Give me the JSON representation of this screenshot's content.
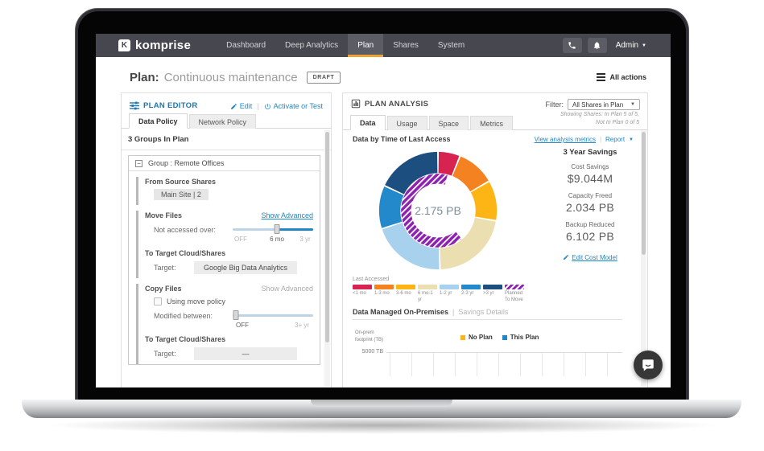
{
  "navbar": {
    "brand": "komprise",
    "items": [
      {
        "label": "Dashboard",
        "active": false
      },
      {
        "label": "Deep Analytics",
        "active": false
      },
      {
        "label": "Plan",
        "active": true
      },
      {
        "label": "Shares",
        "active": false
      },
      {
        "label": "System",
        "active": false
      }
    ],
    "admin_label": "Admin",
    "active_underline_color": "#f0a330"
  },
  "header": {
    "title_prefix": "Plan:",
    "title": "Continuous maintenance",
    "badge": "DRAFT",
    "all_actions": "All actions"
  },
  "plan_editor": {
    "title": "PLAN EDITOR",
    "edit_label": "Edit",
    "activate_label": "Activate or Test",
    "tabs": [
      {
        "label": "Data Policy",
        "active": true
      },
      {
        "label": "Network Policy",
        "active": false
      }
    ],
    "groups_heading": "3 Groups In Plan",
    "group": {
      "title": "Group : Remote Offices",
      "source_heading": "From Source Shares",
      "source_chip": "Main Site | 2",
      "move": {
        "heading": "Move Files",
        "advanced": "Show Advanced",
        "slider_label": "Not accessed over:",
        "ticks": [
          "OFF",
          "6 mo",
          "3 yr"
        ],
        "value": "6 mo",
        "target_heading": "To Target Cloud/Shares",
        "target_label": "Target:",
        "target_value": "Google Big Data Analytics"
      },
      "copy": {
        "heading": "Copy Files",
        "advanced": "Show Advanced",
        "checkbox_label": "Using move policy",
        "checkbox_checked": false,
        "slider_label": "Modified between:",
        "ticks": [
          "OFF",
          "3+ yr"
        ],
        "value": "OFF",
        "target_heading": "To Target Cloud/Shares",
        "target_label": "Target:",
        "target_value": "—"
      }
    }
  },
  "plan_analysis": {
    "title": "PLAN ANALYSIS",
    "filter_label": "Filter:",
    "filter_value": "All Shares in Plan",
    "showing_line1": "Showing Shares: In Plan 5 of 5,",
    "showing_line2": "Not In Plan 0 of 5",
    "tabs": [
      {
        "label": "Data",
        "active": true
      },
      {
        "label": "Usage",
        "active": false
      },
      {
        "label": "Space",
        "active": false
      },
      {
        "label": "Metrics",
        "active": false
      }
    ],
    "section_title": "Data by Time of Last Access",
    "view_metrics": "View analysis metrics",
    "report": "Report",
    "savings": {
      "title": "3 Year Savings",
      "items": [
        {
          "label": "Cost Savings",
          "value": "$9.044M"
        },
        {
          "label": "Capacity Freed",
          "value": "2.034 PB"
        },
        {
          "label": "Backup Reduced",
          "value": "6.102 PB"
        }
      ],
      "edit_link": "Edit Cost Model"
    },
    "legend_title": "Last Accessed",
    "onprem": {
      "title": "Data Managed On-Premises",
      "separator": "|",
      "subtitle": "Savings Details",
      "ylabel_line1": "On-prem",
      "ylabel_line2": "footprint (TB)",
      "ytick": "5000 TB",
      "legend": [
        {
          "label": "No Plan",
          "color": "#fdb515"
        },
        {
          "label": "This Plan",
          "color": "#1f86c8"
        }
      ]
    }
  },
  "chart_data": [
    {
      "type": "donut",
      "title": "Data by Time of Last Access",
      "center_label": "2.175 PB",
      "segments": [
        {
          "label": "<1 mo",
          "deg": 22,
          "color": "#d62350"
        },
        {
          "label": "1-3 mo",
          "deg": 38,
          "color": "#f58220"
        },
        {
          "label": "3-6 mo",
          "deg": 40,
          "color": "#fdb515"
        },
        {
          "label": "6 mo-1 yr",
          "deg": 78,
          "color": "#ebdfb1"
        },
        {
          "label": "1-2 yr",
          "deg": 74,
          "color": "#a7d1ed"
        },
        {
          "label": "2-3 yr",
          "deg": 43,
          "color": "#2389ca"
        },
        {
          "label": ">3 yr",
          "deg": 65,
          "color": "#1d4e80"
        }
      ],
      "planned": {
        "label": "Planned To Move",
        "color": "#8d22b0",
        "hatch": true,
        "start_deg": 140,
        "end_deg": 375
      },
      "legend_position": "bottom"
    },
    {
      "type": "bar",
      "title": "Data Managed On-Premises",
      "ylabel": "On-prem footprint (TB)",
      "y_ticks": [
        "5000 TB"
      ],
      "series": [
        {
          "name": "No Plan",
          "color": "#fdb515",
          "values": []
        },
        {
          "name": "This Plan",
          "color": "#1f86c8",
          "values": []
        }
      ]
    }
  ]
}
